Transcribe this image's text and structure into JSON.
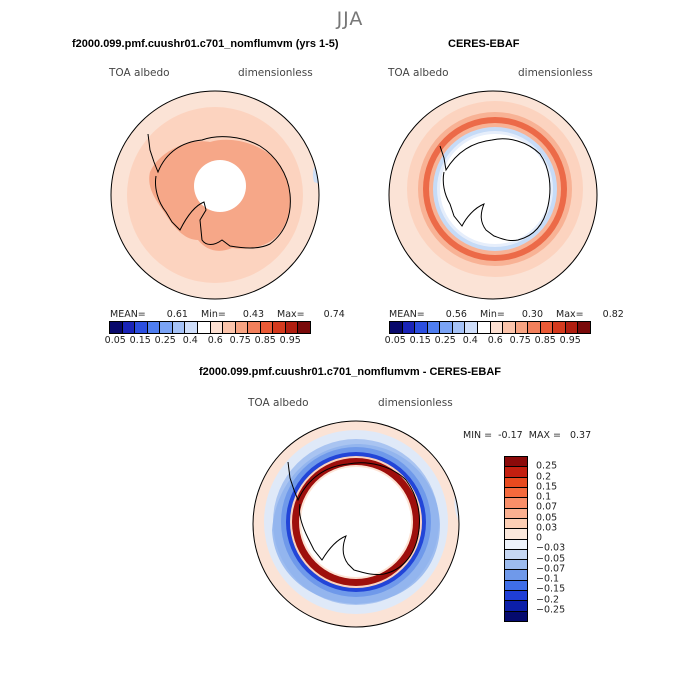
{
  "season": "JJA",
  "panels": [
    {
      "title": "f2000.099.pmf.cuushr01.c701_nomflumvm (yrs 1-5)",
      "variable": "TOA albedo",
      "units": "dimensionless",
      "mean_label": "MEAN=",
      "mean": "0.61",
      "min_label": "Min=",
      "min": "0.43",
      "max_label": "Max=",
      "max": "0.74"
    },
    {
      "title": "CERES-EBAF",
      "variable": "TOA albedo",
      "units": "dimensionless",
      "mean_label": "MEAN=",
      "mean": "0.56",
      "min_label": "Min=",
      "min": "0.30",
      "max_label": "Max=",
      "max": "0.82"
    }
  ],
  "diff_panel": {
    "title": "f2000.099.pmf.cuushr01.c701_nomflumvm - CERES-EBAF",
    "variable": "TOA albedo",
    "units": "dimensionless",
    "stats": "MIN =  -0.17  MAX =   0.37"
  },
  "abs_colorbar": {
    "labels": [
      "0.05",
      "0.15",
      "0.25",
      "0.4",
      "0.6",
      "0.75",
      "0.85",
      "0.95"
    ],
    "colors": [
      "#08086b",
      "#1a24b8",
      "#2c4fe0",
      "#4f7ef0",
      "#7aa3f5",
      "#a5c2f7",
      "#cfdefa",
      "#ffffff",
      "#fde0d2",
      "#fbc4ab",
      "#f7a482",
      "#f2805c",
      "#ea5a36",
      "#d43a1e",
      "#b01e10",
      "#7a0a0a"
    ]
  },
  "diff_colorbar": {
    "labels": [
      "0.25",
      "0.2",
      "0.15",
      "0.1",
      "0.07",
      "0.05",
      "0.03",
      "0",
      "−0.03",
      "−0.05",
      "−0.07",
      "−0.1",
      "−0.15",
      "−0.2",
      "−0.25"
    ],
    "colors": [
      "#8b0a0a",
      "#c31f10",
      "#e84a1f",
      "#f56a3d",
      "#f98e68",
      "#fbb090",
      "#fdcfb5",
      "#fbe8dc",
      "#eef3fb",
      "#c6d7f3",
      "#9cbbee",
      "#6f99ea",
      "#3f6ee8",
      "#1f3ed6",
      "#0c1fa8",
      "#050a6e"
    ]
  },
  "map_colors": {
    "ocean_light": "#fbe3d6",
    "ocean_mid": "#fcd3bf",
    "land_panel1": "#f6a788",
    "blue_edge": "#b9d2f4",
    "ring_red": "#ec6a48",
    "ring_light_red": "#f8b295",
    "ring_blue": "#c6dbf7",
    "diff_dark_red": "#9e0f0c",
    "diff_blue": "#2245d8",
    "diff_light_blue": "#a9c4f1"
  }
}
